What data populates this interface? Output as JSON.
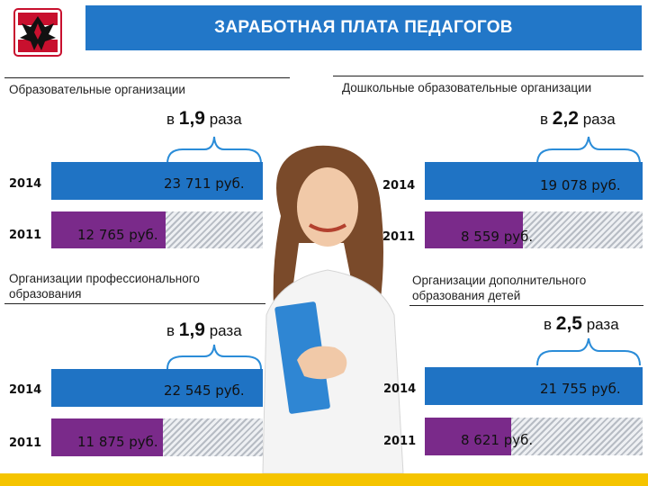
{
  "header": {
    "title": "ЗАРАБОТНАЯ ПЛАТА ПЕДАГОГОВ"
  },
  "colors": {
    "header": "#2277c8",
    "bar_2014": "#1f73c4",
    "bar_2011": "#7a2a8a",
    "footer": "#f5c400"
  },
  "chart_data": [
    {
      "type": "bar",
      "title": "Образовательные организации",
      "ratio_prefix": "в",
      "ratio_value": "1,9",
      "ratio_suffix": "раза",
      "categories": [
        "2014",
        "2011"
      ],
      "values": [
        23711,
        12765
      ],
      "labels": [
        "23 711 руб.",
        "12 765 руб."
      ]
    },
    {
      "type": "bar",
      "title": "Дошкольные образовательные организации",
      "ratio_prefix": "в",
      "ratio_value": "2,2",
      "ratio_suffix": "раза",
      "categories": [
        "2014",
        "2011"
      ],
      "values": [
        19078,
        8559
      ],
      "labels": [
        "19 078 руб.",
        "8 559 руб."
      ]
    },
    {
      "type": "bar",
      "title": "Организации профессионального образования",
      "ratio_prefix": "в",
      "ratio_value": "1,9",
      "ratio_suffix": "раза",
      "categories": [
        "2014",
        "2011"
      ],
      "values": [
        22545,
        11875
      ],
      "labels": [
        "22 545 руб.",
        "11 875 руб."
      ]
    },
    {
      "type": "bar",
      "title": "Организации дополнительного образования детей",
      "ratio_prefix": "в",
      "ratio_value": "2,5",
      "ratio_suffix": "раза",
      "categories": [
        "2014",
        "2011"
      ],
      "values": [
        21755,
        8621
      ],
      "labels": [
        "21 755 руб.",
        "8 621 руб."
      ]
    }
  ]
}
